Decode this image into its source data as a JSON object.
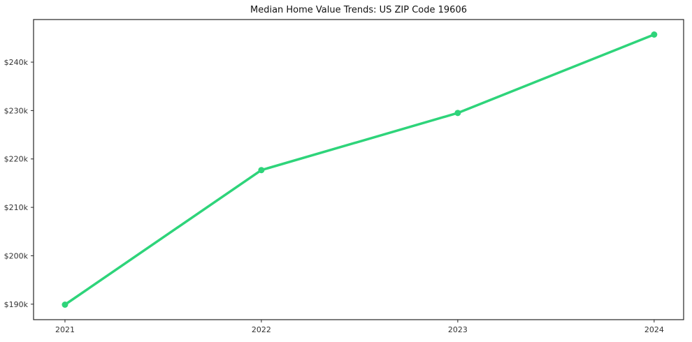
{
  "chart": {
    "title": "Median Home Value Trends: US ZIP Code 19606"
  },
  "chart_data": {
    "type": "line",
    "title": "Median Home Value Trends: US ZIP Code 19606",
    "xlabel": "",
    "ylabel": "",
    "x": [
      2021,
      2022,
      2023,
      2024
    ],
    "x_tick_labels": [
      "2021",
      "2022",
      "2023",
      "2024"
    ],
    "series": [
      {
        "name": "Median Home Value",
        "values": [
          189900,
          217700,
          229500,
          245700
        ]
      }
    ],
    "y_ticks": [
      190000,
      200000,
      210000,
      220000,
      230000,
      240000
    ],
    "y_tick_labels": [
      "$190k",
      "$200k",
      "$210k",
      "$220k",
      "$230k",
      "$240k"
    ],
    "xlim": [
      2020.84,
      2024.15
    ],
    "ylim": [
      186800,
      248800
    ],
    "grid": false,
    "legend": false,
    "line_color": "#2ed47a",
    "marker": "circle",
    "axis_color": "#262626",
    "tick_label_color": "#333333"
  }
}
